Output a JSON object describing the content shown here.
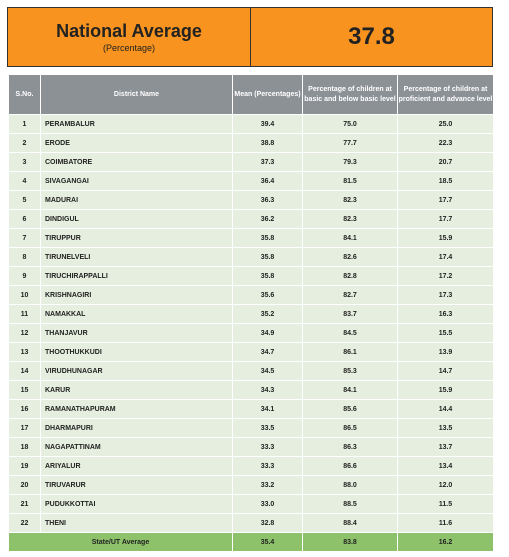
{
  "header": {
    "title": "National Average",
    "subtitle": "(Percentage)",
    "value": "37.8"
  },
  "table": {
    "columns": [
      "S.No.",
      "District Name",
      "Mean (Percentages)",
      "Percentage of children at basic and below basic level",
      "Percentage of children at proficient and advance level"
    ],
    "rows": [
      [
        "1",
        "PERAMBALUR",
        "39.4",
        "75.0",
        "25.0"
      ],
      [
        "2",
        "ERODE",
        "38.8",
        "77.7",
        "22.3"
      ],
      [
        "3",
        "COIMBATORE",
        "37.3",
        "79.3",
        "20.7"
      ],
      [
        "4",
        "SIVAGANGAI",
        "36.4",
        "81.5",
        "18.5"
      ],
      [
        "5",
        "MADURAI",
        "36.3",
        "82.3",
        "17.7"
      ],
      [
        "6",
        "DINDIGUL",
        "36.2",
        "82.3",
        "17.7"
      ],
      [
        "7",
        "TIRUPPUR",
        "35.8",
        "84.1",
        "15.9"
      ],
      [
        "8",
        "TIRUNELVELI",
        "35.8",
        "82.6",
        "17.4"
      ],
      [
        "9",
        "TIRUCHIRAPPALLI",
        "35.8",
        "82.8",
        "17.2"
      ],
      [
        "10",
        "KRISHNAGIRI",
        "35.6",
        "82.7",
        "17.3"
      ],
      [
        "11",
        "NAMAKKAL",
        "35.2",
        "83.7",
        "16.3"
      ],
      [
        "12",
        "THANJAVUR",
        "34.9",
        "84.5",
        "15.5"
      ],
      [
        "13",
        "THOOTHUKKUDI",
        "34.7",
        "86.1",
        "13.9"
      ],
      [
        "14",
        "VIRUDHUNAGAR",
        "34.5",
        "85.3",
        "14.7"
      ],
      [
        "15",
        "KARUR",
        "34.3",
        "84.1",
        "15.9"
      ],
      [
        "16",
        "RAMANATHAPURAM",
        "34.1",
        "85.6",
        "14.4"
      ],
      [
        "17",
        "DHARMAPURI",
        "33.5",
        "86.5",
        "13.5"
      ],
      [
        "18",
        "NAGAPATTINAM",
        "33.3",
        "86.3",
        "13.7"
      ],
      [
        "19",
        "ARIYALUR",
        "33.3",
        "86.6",
        "13.4"
      ],
      [
        "20",
        "TIRUVARUR",
        "33.2",
        "88.0",
        "12.0"
      ],
      [
        "21",
        "PUDUKKOTTAI",
        "33.0",
        "88.5",
        "11.5"
      ],
      [
        "22",
        "THENI",
        "32.8",
        "88.4",
        "11.6"
      ]
    ],
    "footer": [
      "State/UT Average",
      "35.4",
      "83.8",
      "16.2"
    ]
  }
}
